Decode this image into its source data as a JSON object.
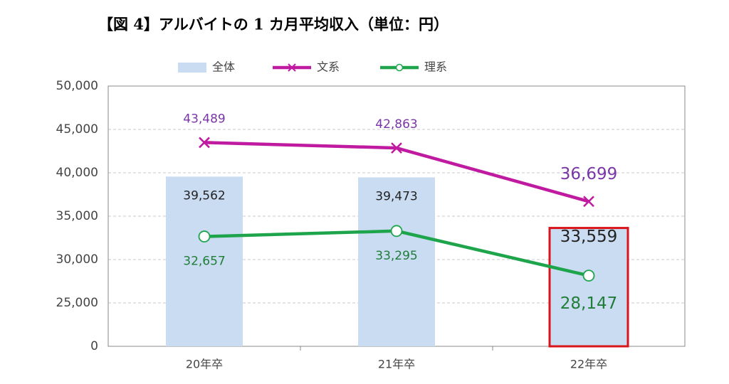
{
  "chart_data": {
    "type": "bar_line",
    "title": "【図 4】アルバイトの 1 カ月平均収入（単位：円）",
    "categories": [
      "20年卒",
      "21年卒",
      "22年卒"
    ],
    "bar": {
      "name": "全体",
      "color": "#cadcf2",
      "values": [
        39562,
        39473,
        33559
      ],
      "value_labels": [
        "39,562",
        "39,473",
        "33,559"
      ],
      "label_color": "#222222"
    },
    "series": [
      {
        "name": "文系",
        "color": "#bf1aa0",
        "marker": "x",
        "values": [
          43489,
          42863,
          36699
        ],
        "value_labels": [
          "43,489",
          "42,863",
          "36,699"
        ],
        "label_color": "#7a35a8"
      },
      {
        "name": "理系",
        "color": "#1ea54c",
        "marker": "circle",
        "values": [
          32657,
          33295,
          28147
        ],
        "value_labels": [
          "32,657",
          "33,295",
          "28,147"
        ],
        "label_color": "#1f7d38"
      }
    ],
    "ylim": [
      0,
      50000
    ],
    "yticks": [
      0,
      {
        "value": 25000,
        "label": "25,000"
      },
      {
        "value": 30000,
        "label": "30,000"
      },
      {
        "value": 35000,
        "label": "35,000"
      },
      {
        "value": 40000,
        "label": "40,000"
      },
      {
        "value": 45000,
        "label": "45,000"
      },
      {
        "value": 50000,
        "label": "50,000"
      }
    ],
    "grid": true,
    "legend": "top"
  }
}
